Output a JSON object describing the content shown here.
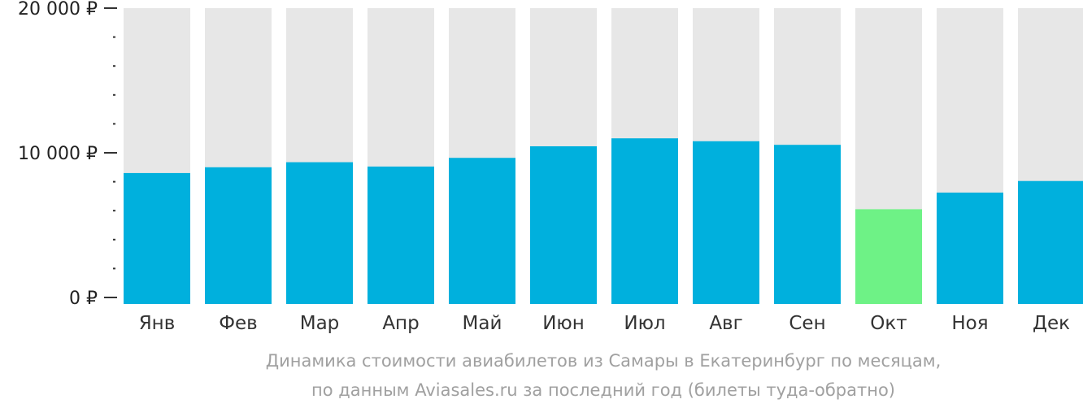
{
  "chart_data": {
    "type": "bar",
    "categories": [
      "Янв",
      "Фев",
      "Мар",
      "Апр",
      "Май",
      "Июн",
      "Июл",
      "Авг",
      "Сен",
      "Окт",
      "Ноя",
      "Дек"
    ],
    "values": [
      8600,
      9000,
      9350,
      9050,
      9650,
      10450,
      11000,
      10800,
      10550,
      6100,
      7250,
      8050
    ],
    "highlight_index": 9,
    "ylim": [
      0,
      20000
    ],
    "y_ticks": [
      {
        "value": 0,
        "label": "0 ₽"
      },
      {
        "value": 10000,
        "label": "10 000 ₽"
      },
      {
        "value": 20000,
        "label": "20 000 ₽"
      }
    ],
    "y_minor_step": 2000,
    "colors": {
      "bar": "#00b0dd",
      "highlight": "#6ef286",
      "track": "#e7e7e7",
      "axis": "#333333",
      "tick_label": "#222222",
      "category_label": "#333333",
      "caption": "#a0a0a0"
    },
    "caption": {
      "line1": "Динамика стоимости авиабилетов из Самары в Екатеринбург по месяцам,",
      "line2": "по данным Aviasales.ru за последний год (билеты туда-обратно)"
    }
  }
}
